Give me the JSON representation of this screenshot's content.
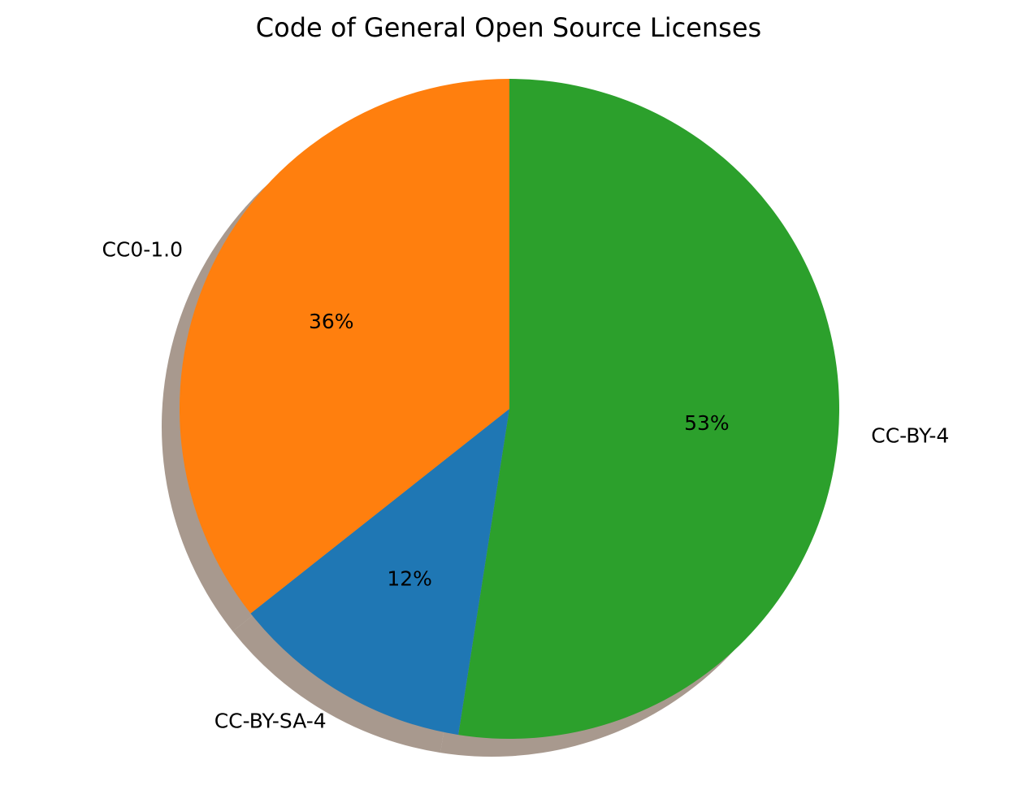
{
  "chart_data": {
    "type": "pie",
    "title": "Code of General Open Source Licenses",
    "slices": [
      {
        "label": "CC-BY-4",
        "percent_label": "53%",
        "value": 53,
        "color": "#2ca02c"
      },
      {
        "label": "CC-BY-SA-4",
        "percent_label": "12%",
        "value": 12,
        "color": "#1f77b4"
      },
      {
        "label": "CC0-1.0",
        "percent_label": "36%",
        "value": 36,
        "color": "#ff7f0e"
      }
    ],
    "shadow": true
  }
}
